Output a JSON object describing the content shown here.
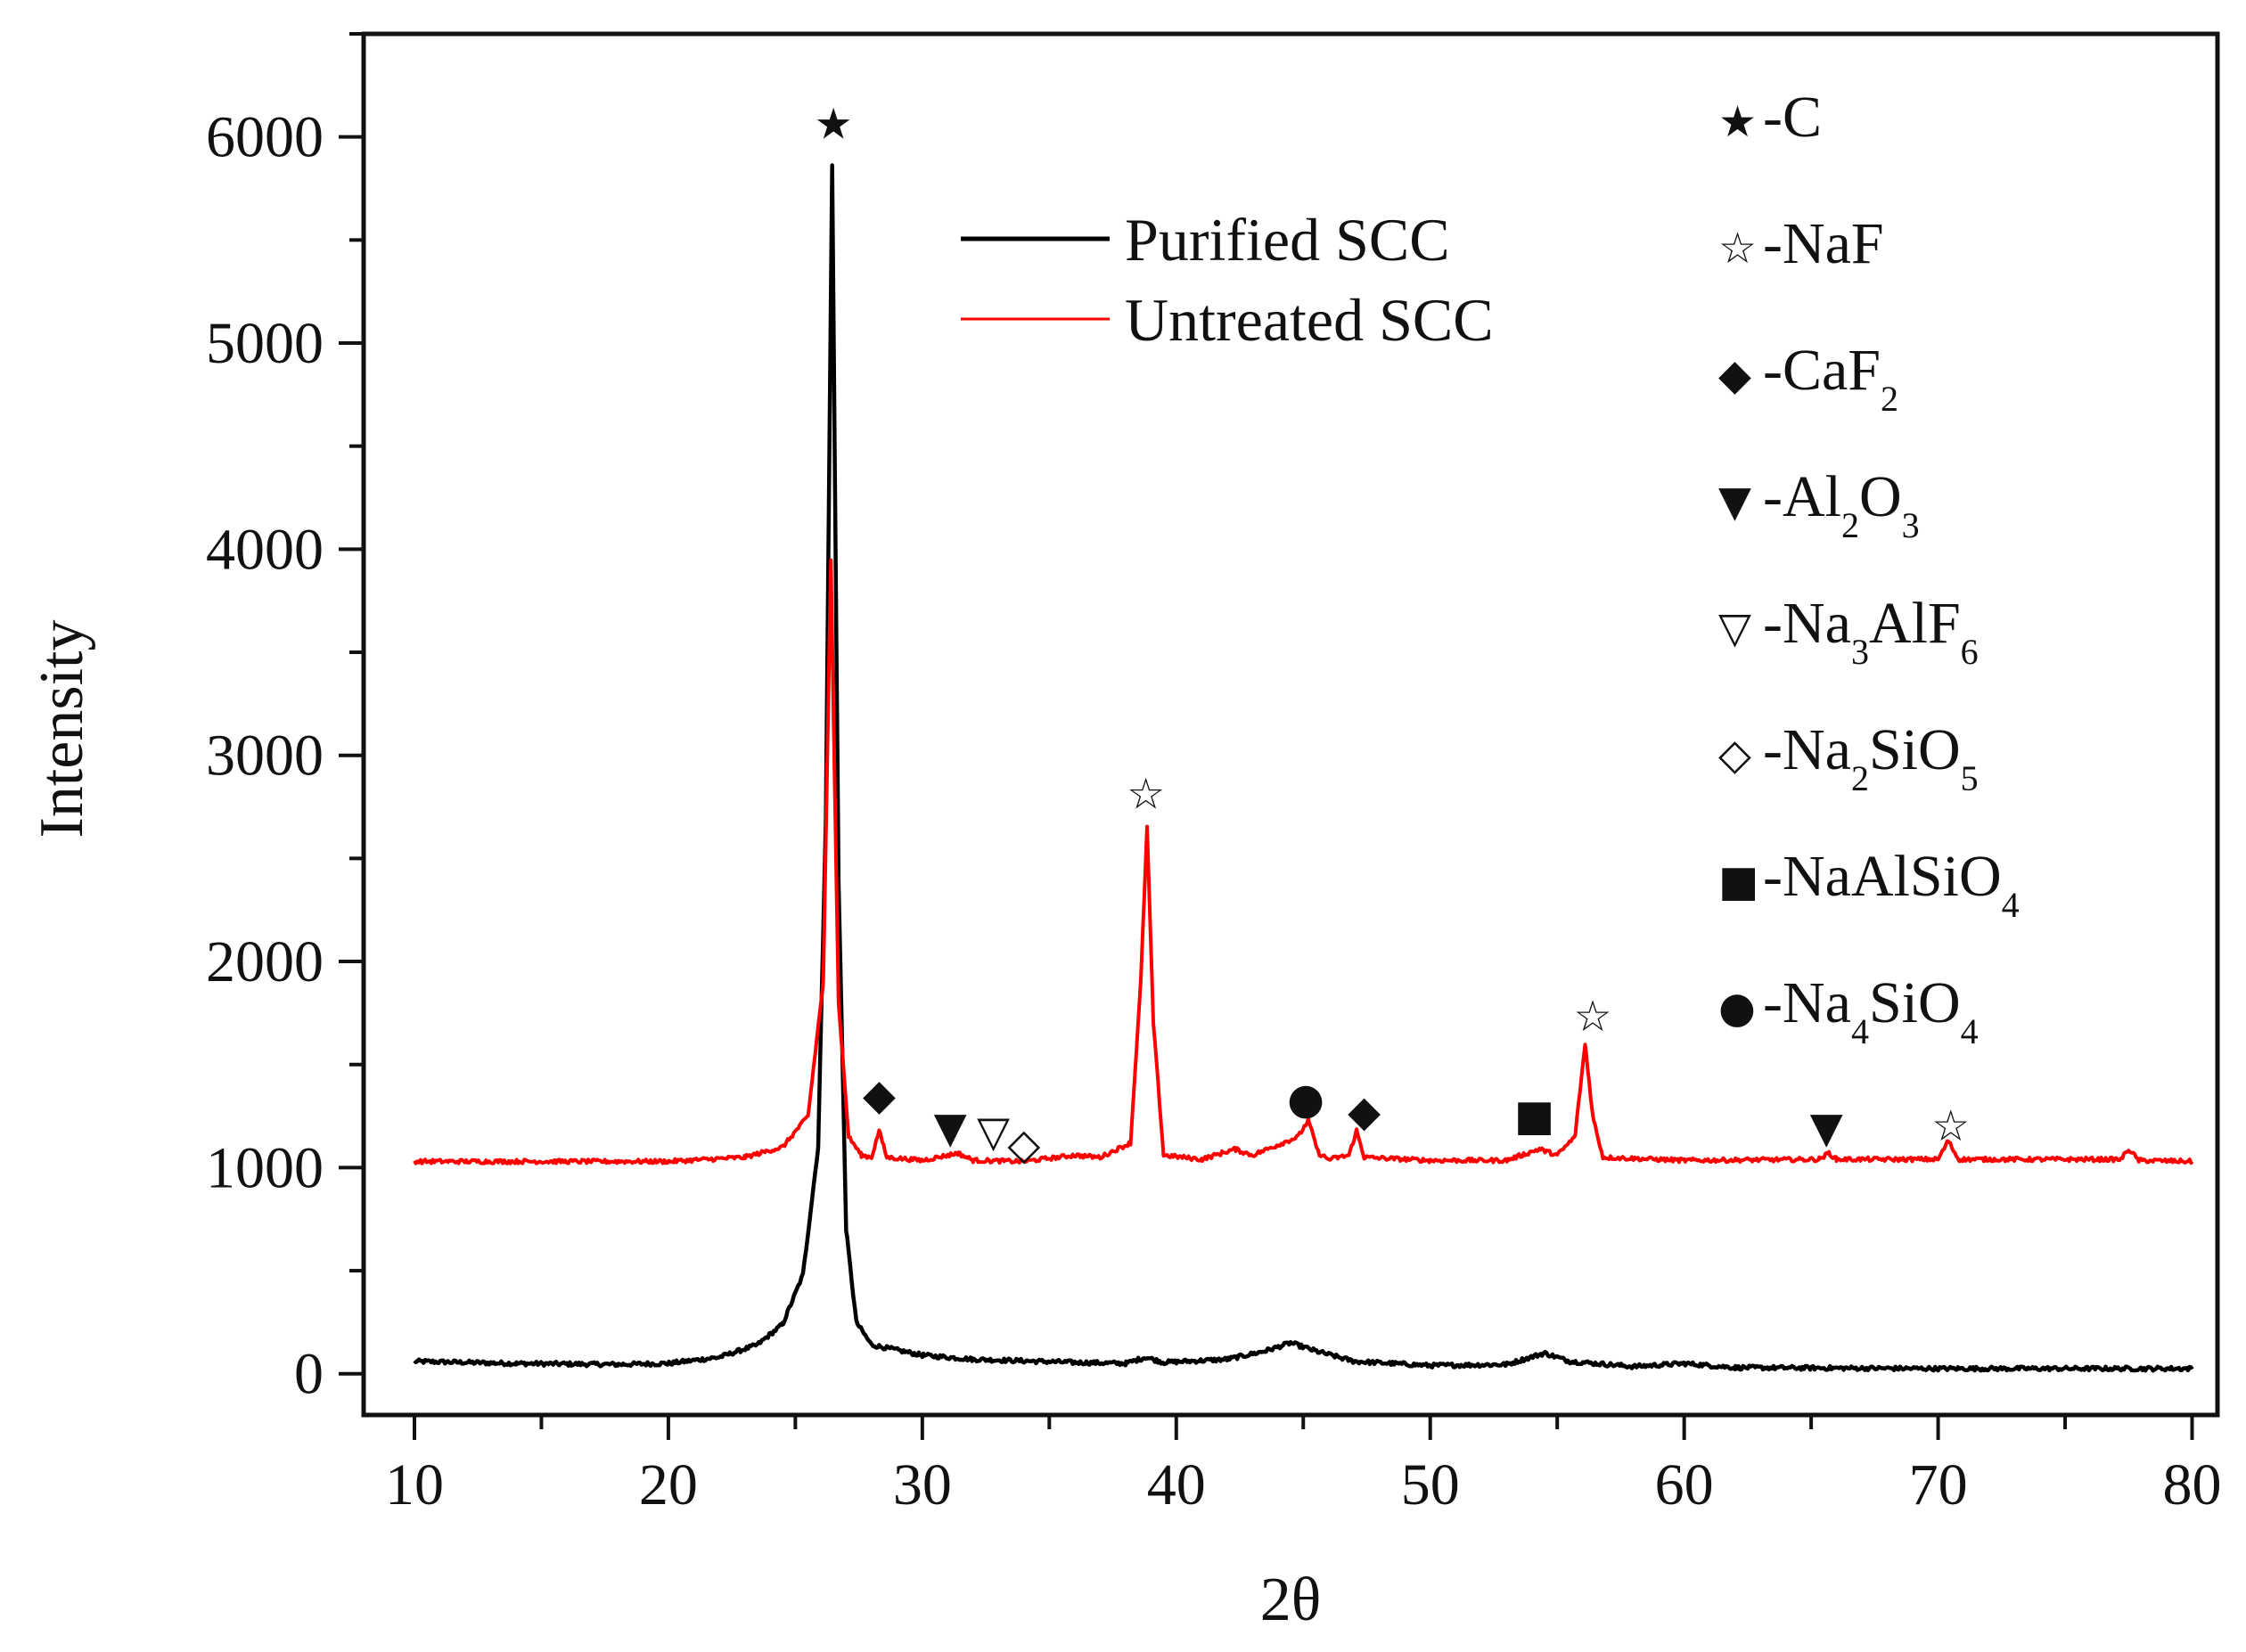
{
  "chart_data": {
    "type": "line",
    "title": "",
    "xlabel": "2θ",
    "ylabel": "Intensity",
    "xlim": [
      8,
      81
    ],
    "ylim": [
      -200,
      6500
    ],
    "xticks": [
      10,
      20,
      30,
      40,
      50,
      60,
      70,
      80
    ],
    "yticks": [
      0,
      1000,
      2000,
      3000,
      4000,
      5000,
      6000
    ],
    "grid": false,
    "legend_position": "top-center",
    "series": [
      {
        "name": "Purified SCC",
        "color": "#000000",
        "baseline": 30,
        "noise": 10,
        "points": [
          [
            10,
            60
          ],
          [
            14,
            50
          ],
          [
            18,
            45
          ],
          [
            20,
            50
          ],
          [
            22,
            80
          ],
          [
            23.5,
            140
          ],
          [
            24.5,
            240
          ],
          [
            25.3,
            480
          ],
          [
            25.9,
            1100
          ],
          [
            26.2,
            2700
          ],
          [
            26.45,
            5870
          ],
          [
            26.7,
            2400
          ],
          [
            27.0,
            700
          ],
          [
            27.4,
            250
          ],
          [
            28,
            140
          ],
          [
            30,
            90
          ],
          [
            32,
            70
          ],
          [
            36,
            55
          ],
          [
            38,
            50
          ],
          [
            38.8,
            80
          ],
          [
            39.5,
            55
          ],
          [
            42,
            70
          ],
          [
            43.5,
            110
          ],
          [
            44.5,
            150
          ],
          [
            45.5,
            110
          ],
          [
            47,
            60
          ],
          [
            50,
            40
          ],
          [
            53,
            45
          ],
          [
            54.5,
            100
          ],
          [
            55.5,
            60
          ],
          [
            58,
            35
          ],
          [
            60,
            50
          ],
          [
            62,
            30
          ],
          [
            70,
            25
          ],
          [
            80,
            25
          ]
        ]
      },
      {
        "name": "Untreated SCC",
        "color": "#ff0000",
        "baseline": 1030,
        "noise": 10,
        "points": [
          [
            10,
            1030
          ],
          [
            20,
            1030
          ],
          [
            23,
            1050
          ],
          [
            24.5,
            1100
          ],
          [
            25.5,
            1250
          ],
          [
            26.1,
            1900
          ],
          [
            26.4,
            3950
          ],
          [
            26.7,
            1800
          ],
          [
            27.1,
            1150
          ],
          [
            27.6,
            1060
          ],
          [
            28.0,
            1050
          ],
          [
            28.3,
            1180
          ],
          [
            28.6,
            1050
          ],
          [
            30,
            1035
          ],
          [
            31.4,
            1070
          ],
          [
            32,
            1035
          ],
          [
            34,
            1030
          ],
          [
            36,
            1060
          ],
          [
            37,
            1050
          ],
          [
            38.2,
            1120
          ],
          [
            38.6,
            1900
          ],
          [
            38.85,
            2650
          ],
          [
            39.1,
            1700
          ],
          [
            39.5,
            1060
          ],
          [
            41,
            1040
          ],
          [
            42.3,
            1090
          ],
          [
            43,
            1060
          ],
          [
            44,
            1110
          ],
          [
            44.8,
            1150
          ],
          [
            45.2,
            1230
          ],
          [
            45.6,
            1070
          ],
          [
            46,
            1040
          ],
          [
            46.8,
            1060
          ],
          [
            47.1,
            1180
          ],
          [
            47.4,
            1050
          ],
          [
            50,
            1035
          ],
          [
            53,
            1035
          ],
          [
            54.3,
            1090
          ],
          [
            55,
            1060
          ],
          [
            55.7,
            1150
          ],
          [
            56.1,
            1600
          ],
          [
            56.4,
            1250
          ],
          [
            56.8,
            1050
          ],
          [
            60,
            1035
          ],
          [
            65.3,
            1040
          ],
          [
            65.7,
            1070
          ],
          [
            66,
            1040
          ],
          [
            70,
            1040
          ],
          [
            70.4,
            1130
          ],
          [
            70.8,
            1040
          ],
          [
            77.2,
            1040
          ],
          [
            77.5,
            1090
          ],
          [
            77.9,
            1035
          ],
          [
            80,
            1030
          ]
        ]
      }
    ],
    "annotations": [
      {
        "symbol": "★",
        "phase": "C",
        "x": 26.5,
        "y": 6070
      },
      {
        "symbol": "☆",
        "phase": "NaF",
        "x": 38.8,
        "y": 2820
      },
      {
        "symbol": "☆",
        "phase": "NaF",
        "x": 56.4,
        "y": 1740
      },
      {
        "symbol": "☆",
        "phase": "NaF",
        "x": 70.5,
        "y": 1210
      },
      {
        "symbol": "◆",
        "phase": "CaF2",
        "x": 28.3,
        "y": 1360
      },
      {
        "symbol": "◆",
        "phase": "CaF2",
        "x": 47.4,
        "y": 1280
      },
      {
        "symbol": "▼",
        "phase": "Al2O3",
        "x": 31.1,
        "y": 1200
      },
      {
        "symbol": "▼",
        "phase": "Al2O3",
        "x": 65.6,
        "y": 1200
      },
      {
        "symbol": "▽",
        "phase": "Na3AlF6",
        "x": 32.8,
        "y": 1180
      },
      {
        "symbol": "◇",
        "phase": "Na2SiO5",
        "x": 34.0,
        "y": 1120
      },
      {
        "symbol": "●",
        "phase": "Na4SiO4",
        "x": 45.1,
        "y": 1340
      },
      {
        "symbol": "■",
        "phase": "NaAlSiO4",
        "x": 54.1,
        "y": 1260
      }
    ]
  },
  "phase_legend": [
    {
      "symbol": "★",
      "parts": [
        [
          "-C",
          ""
        ]
      ]
    },
    {
      "symbol": "☆",
      "parts": [
        [
          "-NaF",
          ""
        ]
      ]
    },
    {
      "symbol": "◆",
      "parts": [
        [
          "-CaF",
          ""
        ],
        [
          "2",
          "sub"
        ]
      ]
    },
    {
      "symbol": "▼",
      "parts": [
        [
          "-Al",
          ""
        ],
        [
          "2",
          "sub"
        ],
        [
          "O",
          ""
        ],
        [
          "3",
          "sub"
        ]
      ]
    },
    {
      "symbol": "▽",
      "parts": [
        [
          "-Na",
          ""
        ],
        [
          "3",
          "sub"
        ],
        [
          "AlF",
          ""
        ],
        [
          "6",
          "sub"
        ]
      ]
    },
    {
      "symbol": "◇",
      "parts": [
        [
          "-Na",
          ""
        ],
        [
          "2",
          "sub"
        ],
        [
          "SiO",
          ""
        ],
        [
          "5",
          "sub"
        ]
      ]
    },
    {
      "symbol": "■",
      "parts": [
        [
          "-NaAlSiO",
          ""
        ],
        [
          "4",
          "sub"
        ]
      ]
    },
    {
      "symbol": "●",
      "parts": [
        [
          "-Na",
          ""
        ],
        [
          "4",
          "sub"
        ],
        [
          "SiO",
          ""
        ],
        [
          "4",
          "sub"
        ]
      ]
    }
  ]
}
